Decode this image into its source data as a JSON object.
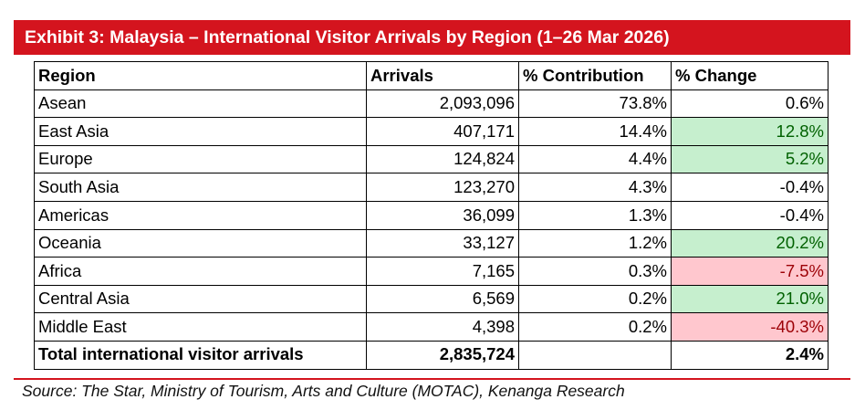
{
  "exhibit": {
    "title": "Exhibit 3: Malaysia – International Visitor Arrivals by Region (1–26 Mar 2026)"
  },
  "table": {
    "headers": [
      "Region",
      "Arrivals",
      "% Contribution",
      "% Change"
    ],
    "rows": [
      {
        "region": "Asean",
        "arrivals": "2,093,096",
        "contribution": "73.8%",
        "change": "0.6%",
        "highlight": "none"
      },
      {
        "region": "East Asia",
        "arrivals": "407,171",
        "contribution": "14.4%",
        "change": "12.8%",
        "highlight": "positive"
      },
      {
        "region": "Europe",
        "arrivals": "124,824",
        "contribution": "4.4%",
        "change": "5.2%",
        "highlight": "positive"
      },
      {
        "region": "South Asia",
        "arrivals": "123,270",
        "contribution": "4.3%",
        "change": "-0.4%",
        "highlight": "none"
      },
      {
        "region": "Americas",
        "arrivals": "36,099",
        "contribution": "1.3%",
        "change": "-0.4%",
        "highlight": "none"
      },
      {
        "region": "Oceania",
        "arrivals": "33,127",
        "contribution": "1.2%",
        "change": "20.2%",
        "highlight": "positive"
      },
      {
        "region": "Africa",
        "arrivals": "7,165",
        "contribution": "0.3%",
        "change": "-7.5%",
        "highlight": "negative"
      },
      {
        "region": "Central Asia",
        "arrivals": "6,569",
        "contribution": "0.2%",
        "change": "21.0%",
        "highlight": "positive"
      },
      {
        "region": "Middle East",
        "arrivals": "4,398",
        "contribution": "0.2%",
        "change": "-40.3%",
        "highlight": "negative"
      }
    ],
    "total": {
      "label": "Total international visitor arrivals",
      "arrivals": "2,835,724",
      "contribution": "",
      "change": "2.4%"
    }
  },
  "source": "Source: The Star, Ministry of Tourism, Arts and Culture (MOTAC), Kenanga Research",
  "colors": {
    "banner": "#d4141e",
    "positive_fill": "#c6efce",
    "positive_text": "#006100",
    "negative_fill": "#ffc7ce",
    "negative_text": "#9c0006"
  }
}
